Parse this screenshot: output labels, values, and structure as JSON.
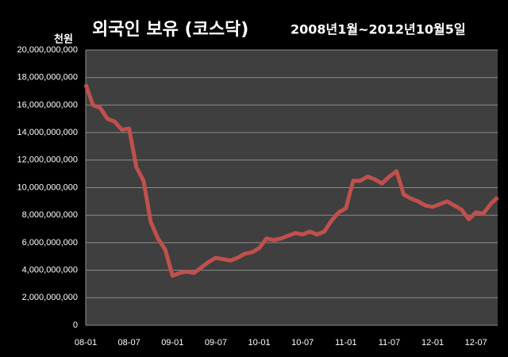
{
  "chart_data": {
    "type": "line",
    "title": "외국인 보유 (코스닥)",
    "subtitle": "2008년1월~2012년10월5일",
    "y_label": "천원",
    "x": [
      "08-01",
      "08-02",
      "08-03",
      "08-04",
      "08-05",
      "08-06",
      "08-07",
      "08-08",
      "08-09",
      "08-10",
      "08-11",
      "08-12",
      "09-01",
      "09-02",
      "09-03",
      "09-04",
      "09-05",
      "09-06",
      "09-07",
      "09-08",
      "09-09",
      "09-10",
      "09-11",
      "09-12",
      "10-01",
      "10-02",
      "10-03",
      "10-04",
      "10-05",
      "10-06",
      "10-07",
      "10-08",
      "10-09",
      "10-10",
      "10-11",
      "10-12",
      "11-01",
      "11-02",
      "11-03",
      "11-04",
      "11-05",
      "11-06",
      "11-07",
      "11-08",
      "11-09",
      "11-10",
      "11-11",
      "11-12",
      "12-01",
      "12-02",
      "12-03",
      "12-04",
      "12-05",
      "12-06",
      "12-07",
      "12-08",
      "12-09",
      "12-10"
    ],
    "xticks": [
      "08-01",
      "08-07",
      "09-01",
      "09-07",
      "10-01",
      "10-07",
      "11-01",
      "11-07",
      "12-01",
      "12-07"
    ],
    "series": [
      {
        "name": "외국인 보유",
        "color": "#c0504d",
        "values": [
          17500000000,
          16000000000,
          15800000000,
          15000000000,
          14800000000,
          14200000000,
          14300000000,
          11500000000,
          10500000000,
          7500000000,
          6300000000,
          5500000000,
          3600000000,
          3800000000,
          3900000000,
          3800000000,
          4200000000,
          4600000000,
          4900000000,
          4800000000,
          4700000000,
          4900000000,
          5200000000,
          5300000000,
          5600000000,
          6300000000,
          6200000000,
          6300000000,
          6500000000,
          6700000000,
          6600000000,
          6800000000,
          6600000000,
          6800000000,
          7600000000,
          8200000000,
          8500000000,
          10500000000,
          10500000000,
          10800000000,
          10600000000,
          10300000000,
          10800000000,
          11200000000,
          9500000000,
          9200000000,
          9000000000,
          8700000000,
          8600000000,
          8800000000,
          9000000000,
          8700000000,
          8400000000,
          7700000000,
          8200000000,
          8100000000,
          8800000000,
          9300000000
        ]
      }
    ],
    "ylim": [
      0,
      20000000000
    ],
    "yticks": [
      0,
      {
        "value": 2000000000,
        "label": "2,000,000,000"
      },
      {
        "value": 4000000000,
        "label": "4,000,000,000"
      },
      {
        "value": 6000000000,
        "label": "6,000,000,000"
      },
      {
        "value": 8000000000,
        "label": "8,000,000,000"
      },
      {
        "value": 10000000000,
        "label": "10,000,000,000"
      },
      {
        "value": 12000000000,
        "label": "12,000,000,000"
      },
      {
        "value": 14000000000,
        "label": "14,000,000,000"
      },
      {
        "value": 16000000000,
        "label": "16,000,000,000"
      },
      {
        "value": 18000000000,
        "label": "18,000,000,000"
      },
      {
        "value": 20000000000,
        "label": "20,000,000,000"
      }
    ],
    "grid": true
  }
}
